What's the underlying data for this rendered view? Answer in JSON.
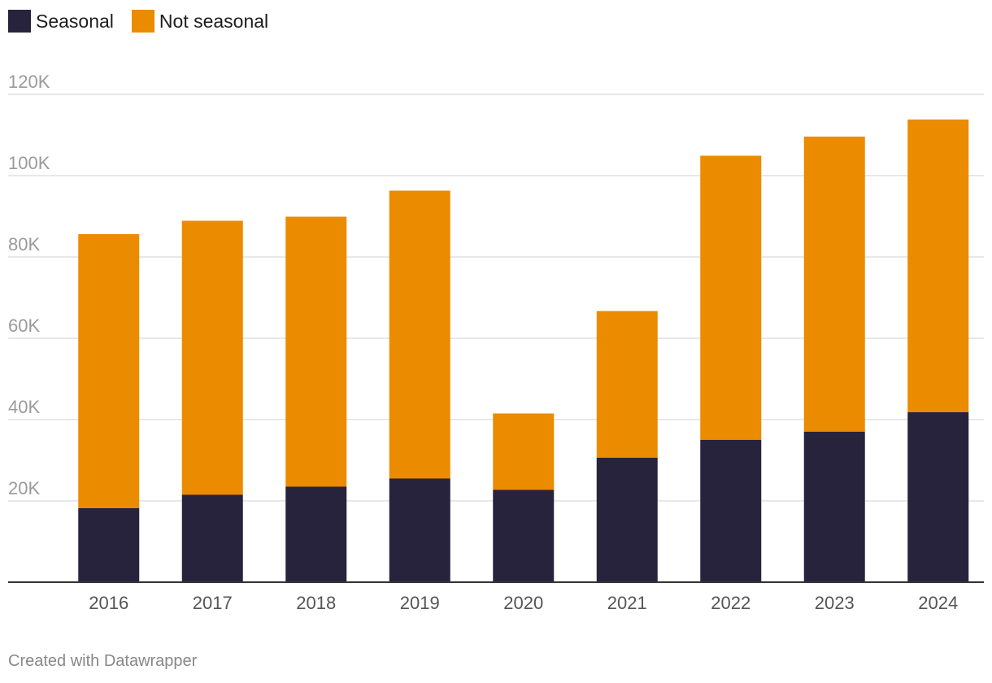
{
  "chart_data": {
    "type": "bar",
    "stacked": true,
    "categories": [
      "2016",
      "2017",
      "2018",
      "2019",
      "2020",
      "2021",
      "2022",
      "2023",
      "2024"
    ],
    "series": [
      {
        "name": "Seasonal",
        "color": "#28233d",
        "values": [
          18200,
          21500,
          23500,
          25500,
          22700,
          30600,
          35000,
          37000,
          41800
        ]
      },
      {
        "name": "Not seasonal",
        "color": "#eb8b00",
        "values": [
          67400,
          67400,
          66400,
          70800,
          18800,
          36100,
          69900,
          72600,
          72000
        ]
      }
    ],
    "ylim": [
      0,
      120000
    ],
    "yticks": [
      20000,
      40000,
      60000,
      80000,
      100000,
      120000
    ],
    "ytick_labels": [
      "20K",
      "40K",
      "60K",
      "80K",
      "100K",
      "120K"
    ],
    "grid": true,
    "legend": "top-left"
  },
  "legend": {
    "items": [
      {
        "label": "Seasonal",
        "color": "#28233d"
      },
      {
        "label": "Not seasonal",
        "color": "#eb8b00"
      }
    ]
  },
  "footer": {
    "credit": "Created with Datawrapper"
  }
}
